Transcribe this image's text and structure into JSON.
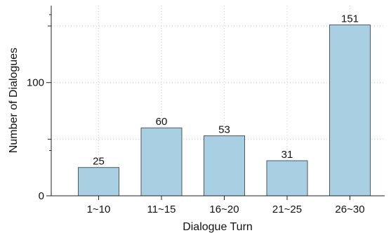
{
  "chart_data": {
    "type": "bar",
    "categories": [
      "1~10",
      "11~15",
      "16~20",
      "21~25",
      "26~30"
    ],
    "values": [
      25,
      60,
      53,
      31,
      151
    ],
    "data_labels": [
      "25",
      "60",
      "53",
      "31",
      "151"
    ],
    "xlabel": "Dialogue Turn",
    "ylabel": "Number of Dialogues",
    "yticks": [
      0,
      100
    ],
    "ytick_labels": [
      "0",
      "100"
    ],
    "ylim": [
      0,
      168
    ],
    "grid": true,
    "bar_color": "#a8d0e2",
    "bar_edge_color": "#4a5a66"
  }
}
